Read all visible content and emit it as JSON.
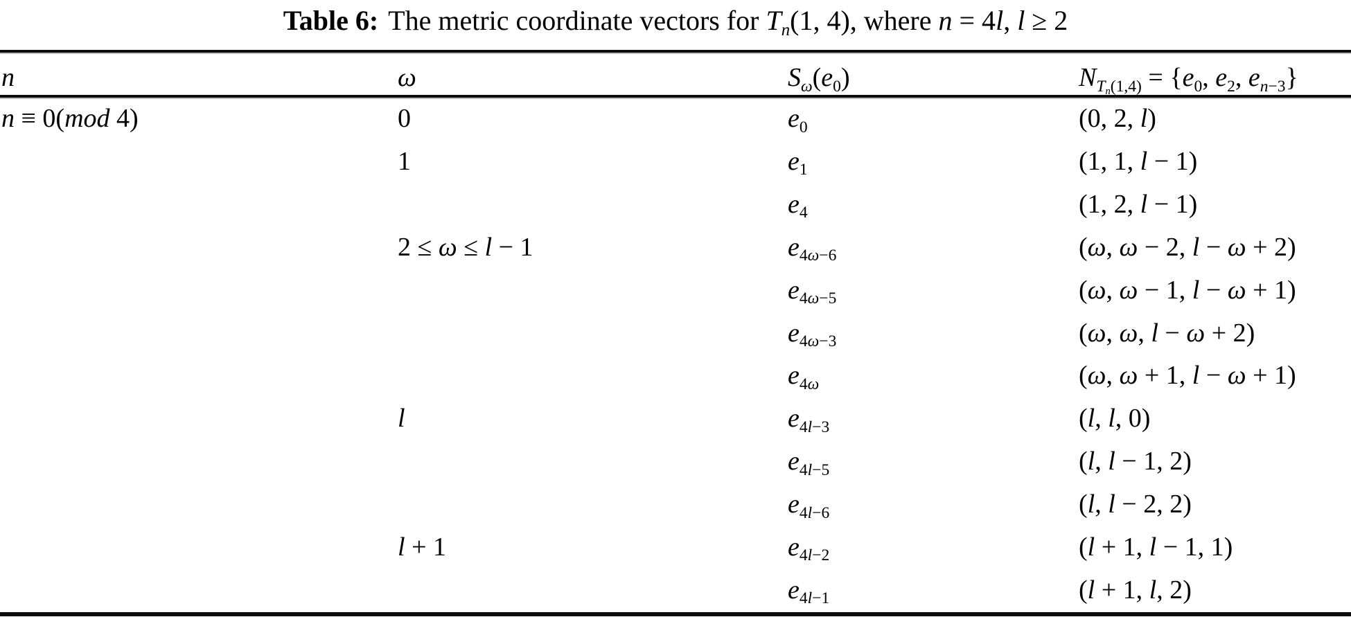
{
  "caption": {
    "label": "Table 6:",
    "text": "The metric coordinate vectors for $T$_{$n$}(1, 4), where $n$ = 4$l$, $l$ ≥ 2"
  },
  "table": {
    "columns": [
      {
        "label": "$n$"
      },
      {
        "label": "$ω$"
      },
      {
        "label": "$S$_{$ω$}($e$_{0})"
      },
      {
        "label": "$N$_{$T$_{$n$}(1,4)} = {$e$_{0}, $e$_{2}, $e$_{$n$−3}}"
      }
    ],
    "rows": [
      [
        "$n$ ≡ 0($mod$ 4)",
        "0",
        "$e$_{0}",
        "(0, 2, $l$)"
      ],
      [
        "",
        "1",
        "$e$_{1}",
        "(1, 1, $l$ − 1)"
      ],
      [
        "",
        "",
        "$e$_{4}",
        "(1, 2, $l$ − 1)"
      ],
      [
        "",
        "2 ≤ $ω$ ≤ $l$ − 1",
        "$e$_{4$ω$−6}",
        "($ω$, $ω$ − 2, $l$ − $ω$ + 2)"
      ],
      [
        "",
        "",
        "$e$_{4$ω$−5}",
        "($ω$, $ω$ − 1, $l$ − $ω$ + 1)"
      ],
      [
        "",
        "",
        "$e$_{4$ω$−3}",
        "($ω$, $ω$, $l$ − $ω$ + 2)"
      ],
      [
        "",
        "",
        "$e$_{4$ω$}",
        "($ω$, $ω$ + 1, $l$ − $ω$ + 1)"
      ],
      [
        "",
        "$l$",
        "$e$_{4$l$−3}",
        "($l$, $l$, 0)"
      ],
      [
        "",
        "",
        "$e$_{4$l$−5}",
        "($l$, $l$ − 1, 2)"
      ],
      [
        "",
        "",
        "$e$_{4$l$−6}",
        "($l$, $l$ − 2, 2)"
      ],
      [
        "",
        "$l$ + 1",
        "$e$_{4$l$−2}",
        "($l$ + 1, $l$ − 1, 1)"
      ],
      [
        "",
        "",
        "$e$_{4$l$−1}",
        "($l$ + 1, $l$, 2)"
      ]
    ],
    "column_names": [
      "n",
      "omega",
      "s-omega-e0",
      "metric-vector"
    ]
  },
  "colors": {
    "background": "#ffffff",
    "text": "#000000",
    "rule": "#0c0c0c"
  }
}
